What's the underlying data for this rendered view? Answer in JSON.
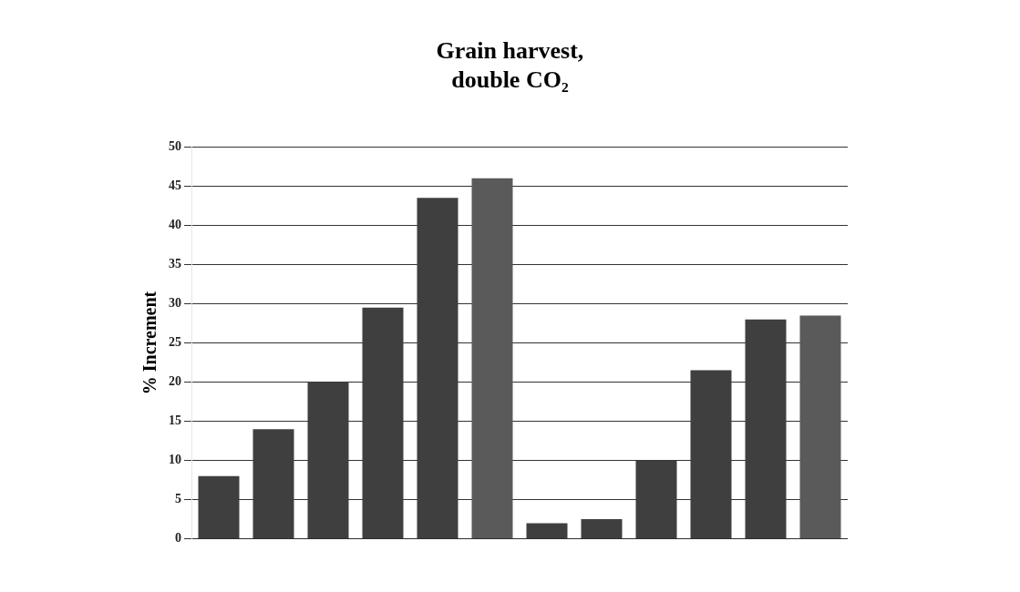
{
  "chart_data": {
    "type": "bar",
    "title": "Grain harvest,\ndouble CO₂",
    "ylabel": "% Increment",
    "categories": [
      null,
      null,
      null,
      null,
      null,
      null,
      null,
      null,
      null,
      null,
      null,
      null
    ],
    "values": [
      8,
      14,
      20,
      29.5,
      43.5,
      46,
      2,
      2.5,
      10,
      21.5,
      28,
      28.5
    ],
    "colors": [
      "#3f3f3f",
      "#3f3f3f",
      "#3f3f3f",
      "#3f3f3f",
      "#3f3f3f",
      "#5a5a5a",
      "#3f3f3f",
      "#3f3f3f",
      "#3f3f3f",
      "#3f3f3f",
      "#3f3f3f",
      "#5a5a5a"
    ],
    "ylim": [
      0,
      50
    ],
    "yticks": [
      0,
      5,
      10,
      15,
      20,
      25,
      30,
      35,
      40,
      45,
      50
    ],
    "grid": "y",
    "legend": false
  }
}
